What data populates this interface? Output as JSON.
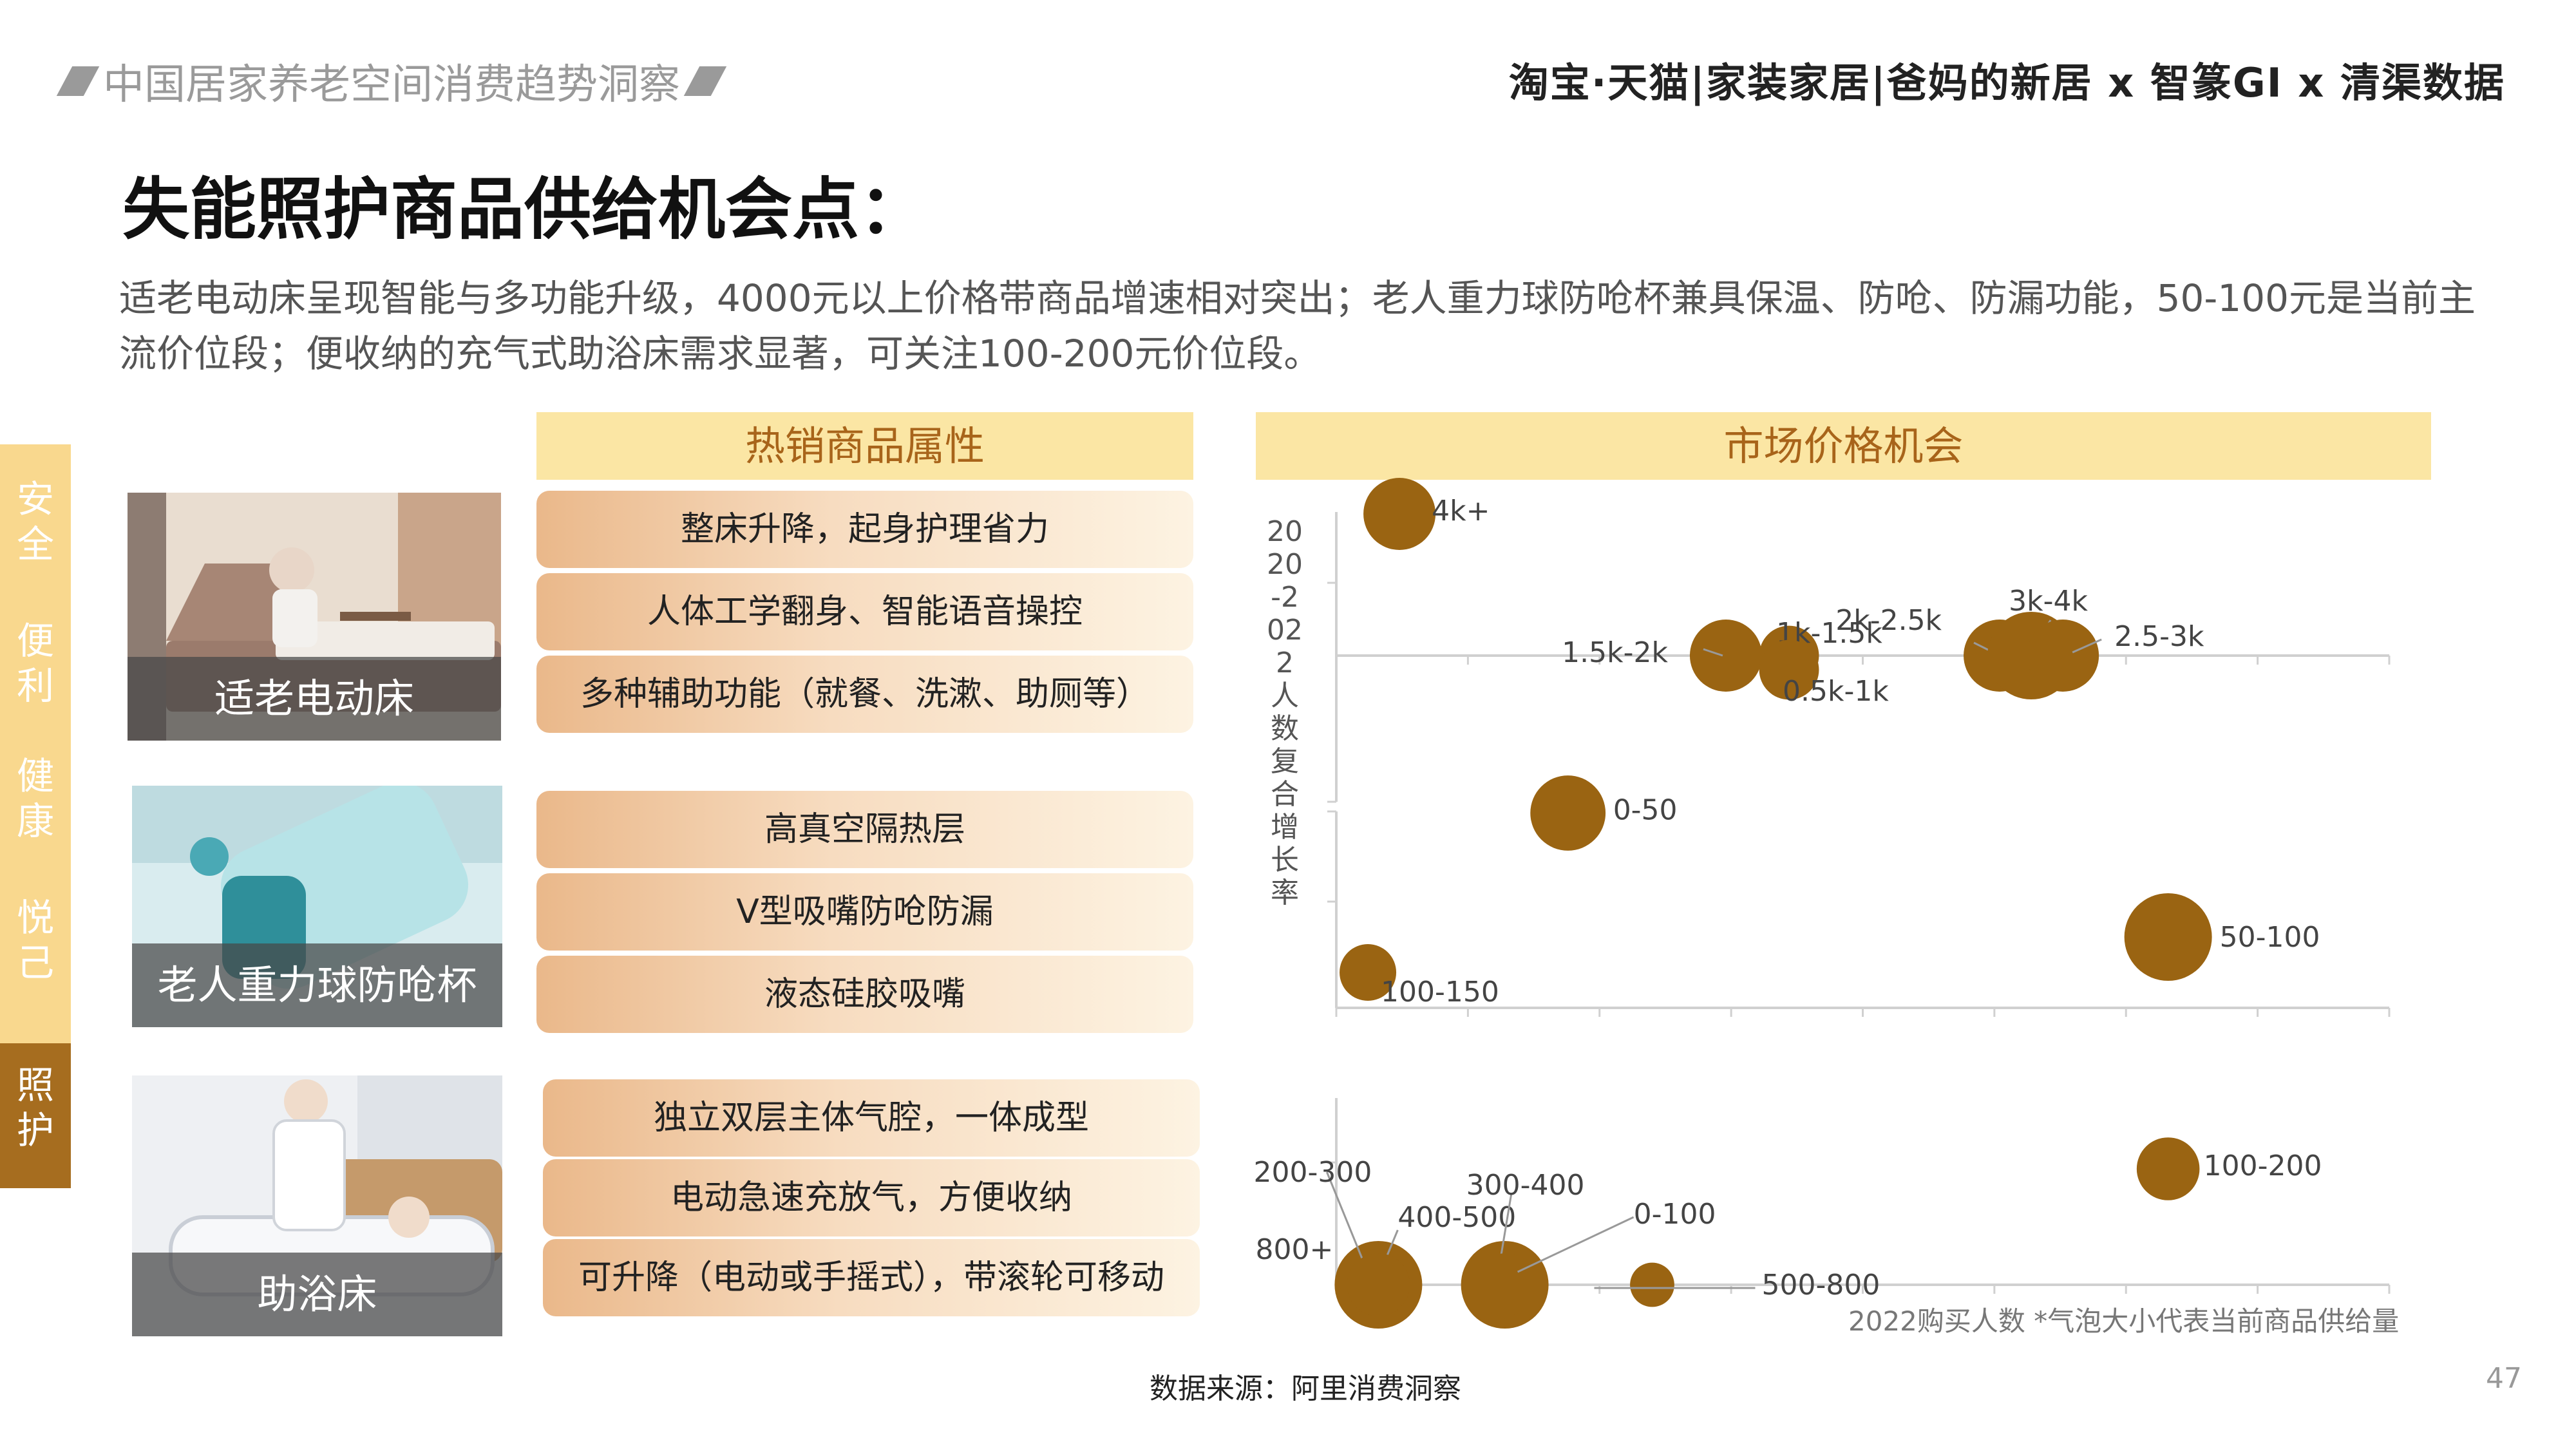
{
  "header": {
    "report_title": "中国居家养老空间消费趋势洞察",
    "brand_line": "淘宝·天猫|家装家居|爸妈的新居 x 智篆GI x 清渠数据"
  },
  "title": "失能照护商品供给机会点：",
  "description": "适老电动床呈现智能与多功能升级，4000元以上价格带商品增速相对突出；老人重力球防呛杯兼具保温、防呛、防漏功能，50-100元是当前主流价位段；便收纳的充气式助浴床需求显著，可关注100-200元价位段。",
  "tabs": [
    {
      "label": "安全",
      "active": false
    },
    {
      "label": "便利",
      "active": false
    },
    {
      "label": "健康",
      "active": false
    },
    {
      "label": "悦己",
      "active": false
    },
    {
      "label": "照护",
      "active": true
    }
  ],
  "sections": {
    "attributes_header": "热销商品属性",
    "market_header": "市场价格机会"
  },
  "products": [
    {
      "name": "适老电动床",
      "attributes": [
        "整床升降，起身护理省力",
        "人体工学翻身、智能语音操控",
        "多种辅助功能（就餐、洗漱、助厕等）"
      ]
    },
    {
      "name": "老人重力球防呛杯",
      "attributes": [
        "高真空隔热层",
        "V型吸嘴防呛防漏",
        "液态硅胶吸嘴"
      ]
    },
    {
      "name": "助浴床",
      "attributes": [
        "独立双层主体气腔，一体成型",
        "电动急速充放气，方便收纳",
        "可升降（电动或手摇式），带滚轮可移动"
      ]
    }
  ],
  "chart_data": {
    "type": "scatter",
    "ylabel": "2020-2022人数复合增长率",
    "xlabel": "2022购买人数",
    "note": "*气泡大小代表当前商品供给量",
    "bubble_color": "#9a6412",
    "panels": [
      {
        "product": "适老电动床",
        "points": [
          {
            "label": "4k+",
            "x": 0.06,
            "y": 0.5,
            "size": 0.75
          },
          {
            "label": "1.5k-2k",
            "x": 0.37,
            "y": 0.0,
            "size": 0.75
          },
          {
            "label": "1k-1.5k",
            "x": 0.43,
            "y": 0.0,
            "size": 0.55
          },
          {
            "label": "0.5k-1k",
            "x": 0.43,
            "y": -0.05,
            "size": 0.55
          },
          {
            "label": "2k-2.5k",
            "x": 0.63,
            "y": 0.0,
            "size": 0.75
          },
          {
            "label": "3k-4k",
            "x": 0.66,
            "y": 0.0,
            "size": 1.0
          },
          {
            "label": "2.5-3k",
            "x": 0.69,
            "y": 0.0,
            "size": 0.75
          }
        ]
      },
      {
        "product": "老人重力球防呛杯",
        "points": [
          {
            "label": "0-50",
            "x": 0.22,
            "y": 0.55,
            "size": 0.8
          },
          {
            "label": "50-100",
            "x": 0.79,
            "y": 0.2,
            "size": 1.0
          },
          {
            "label": "100-150",
            "x": 0.03,
            "y": 0.1,
            "size": 0.5
          }
        ]
      },
      {
        "product": "助浴床",
        "points": [
          {
            "label": "200-300",
            "x": 0.04,
            "y": 0.0,
            "size": 1.0
          },
          {
            "label": "400-500",
            "x": 0.04,
            "y": 0.0,
            "size": 0.6
          },
          {
            "label": "800+",
            "x": 0.04,
            "y": 0.0,
            "size": 0.6
          },
          {
            "label": "300-400",
            "x": 0.16,
            "y": 0.0,
            "size": 1.0
          },
          {
            "label": "0-100",
            "x": 0.16,
            "y": 0.0,
            "size": 0.6
          },
          {
            "label": "500-800",
            "x": 0.3,
            "y": 0.0,
            "size": 0.3
          },
          {
            "label": "100-200",
            "x": 0.79,
            "y": 0.6,
            "size": 0.6
          }
        ]
      }
    ]
  },
  "footer": {
    "source": "数据来源：阿里消费洞察",
    "page": "47"
  }
}
